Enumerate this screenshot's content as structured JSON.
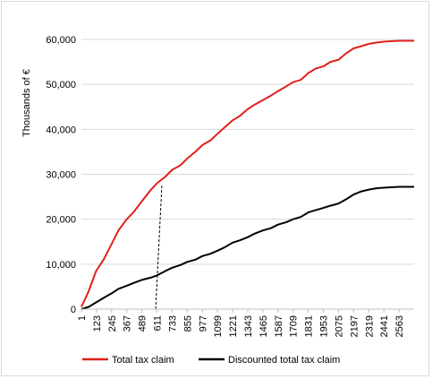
{
  "chart_data": {
    "type": "line",
    "title": "",
    "xlabel": "",
    "ylabel": "Thousands of €",
    "ylim": [
      0,
      60000
    ],
    "xlim": [
      1,
      2685
    ],
    "yticks": [
      "0",
      "10,000",
      "20,000",
      "30,000",
      "40,000",
      "50,000",
      "60,000"
    ],
    "ytick_values": [
      0,
      10000,
      20000,
      30000,
      40000,
      50000,
      60000
    ],
    "xticks": [
      "1",
      "123",
      "245",
      "367",
      "489",
      "611",
      "733",
      "855",
      "977",
      "1099",
      "1221",
      "1343",
      "1465",
      "1587",
      "1709",
      "1831",
      "1953",
      "2075",
      "2197",
      "2319",
      "2441",
      "2563"
    ],
    "xtick_values": [
      1,
      123,
      245,
      367,
      489,
      611,
      733,
      855,
      977,
      1099,
      1221,
      1343,
      1465,
      1587,
      1709,
      1831,
      1953,
      2075,
      2197,
      2319,
      2441,
      2563
    ],
    "grid": "horizontal",
    "legend_position": "bottom",
    "marker_line": {
      "x": [
        600,
        650
      ],
      "y": [
        0,
        27500
      ],
      "style": "dashed"
    },
    "series": [
      {
        "name": "Total tax claim",
        "color": "#e0201b",
        "x": [
          1,
          60,
          120,
          180,
          245,
          300,
          367,
          420,
          489,
          560,
          611,
          680,
          733,
          800,
          855,
          920,
          977,
          1040,
          1099,
          1160,
          1221,
          1280,
          1343,
          1400,
          1465,
          1530,
          1587,
          1650,
          1709,
          1770,
          1831,
          1890,
          1953,
          2010,
          2075,
          2140,
          2197,
          2260,
          2319,
          2380,
          2441,
          2500,
          2563,
          2620,
          2685
        ],
        "y": [
          500,
          4000,
          8500,
          11000,
          14500,
          17500,
          20000,
          21500,
          24000,
          26500,
          28000,
          29500,
          31000,
          32000,
          33500,
          35000,
          36500,
          37500,
          39000,
          40500,
          42000,
          43000,
          44500,
          45500,
          46500,
          47500,
          48500,
          49500,
          50500,
          51000,
          52500,
          53500,
          54000,
          55000,
          55500,
          57000,
          58000,
          58500,
          59000,
          59300,
          59500,
          59600,
          59700,
          59700,
          59700
        ]
      },
      {
        "name": "Discounted total tax claim",
        "color": "#000000",
        "x": [
          1,
          60,
          120,
          180,
          245,
          300,
          367,
          420,
          489,
          560,
          611,
          680,
          733,
          800,
          855,
          920,
          977,
          1040,
          1099,
          1160,
          1221,
          1280,
          1343,
          1400,
          1465,
          1530,
          1587,
          1650,
          1709,
          1770,
          1831,
          1890,
          1953,
          2010,
          2075,
          2140,
          2197,
          2260,
          2319,
          2380,
          2441,
          2500,
          2563,
          2620,
          2685
        ],
        "y": [
          0,
          500,
          1500,
          2500,
          3500,
          4500,
          5200,
          5800,
          6500,
          7000,
          7500,
          8500,
          9200,
          9800,
          10500,
          11000,
          11800,
          12300,
          13000,
          13800,
          14800,
          15300,
          16000,
          16800,
          17500,
          18000,
          18800,
          19300,
          20000,
          20500,
          21500,
          22000,
          22500,
          23000,
          23500,
          24500,
          25500,
          26200,
          26600,
          26900,
          27000,
          27100,
          27200,
          27200,
          27200
        ]
      }
    ]
  }
}
